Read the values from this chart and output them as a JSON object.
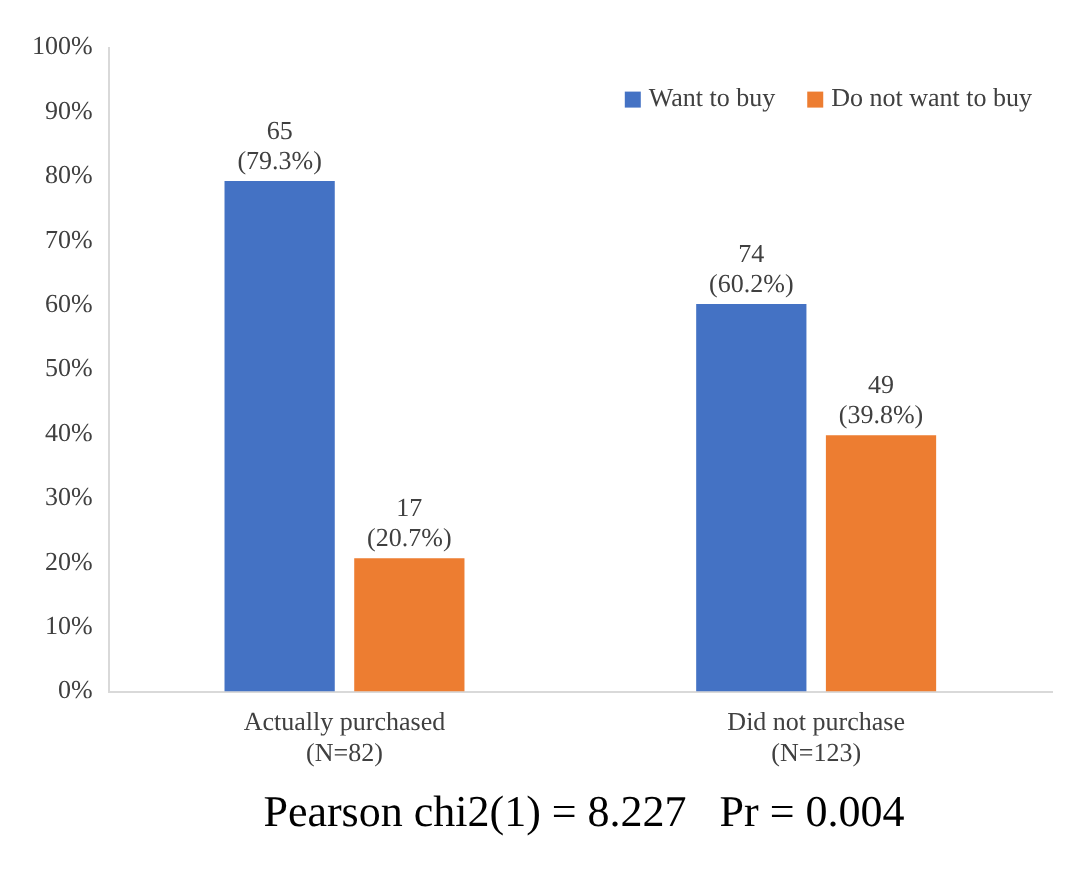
{
  "chart_data": {
    "type": "bar",
    "categories": [
      "Actually purchased\n(N=82)",
      "Did not purchase\n(N=123)"
    ],
    "series": [
      {
        "name": "Want to buy",
        "color": "#4472c4",
        "values": [
          79.3,
          60.2
        ],
        "value_labels": [
          "65\n(79.3%)",
          "74\n(60.2%)"
        ]
      },
      {
        "name": "Do not want to buy",
        "color": "#ed7d31",
        "values": [
          20.7,
          39.8
        ],
        "value_labels": [
          "17\n(20.7%)",
          "49\n(39.8%)"
        ]
      }
    ],
    "ylim": [
      0,
      100
    ],
    "yticks": [
      {
        "value": 0,
        "label": "0%"
      },
      {
        "value": 10,
        "label": "10%"
      },
      {
        "value": 20,
        "label": "20%"
      },
      {
        "value": 30,
        "label": "30%"
      },
      {
        "value": 40,
        "label": "40%"
      },
      {
        "value": 50,
        "label": "50%"
      },
      {
        "value": 60,
        "label": "60%"
      },
      {
        "value": 70,
        "label": "70%"
      },
      {
        "value": 80,
        "label": "80%"
      },
      {
        "value": 90,
        "label": "90%"
      },
      {
        "value": 100,
        "label": "100%"
      }
    ],
    "grid": false,
    "legend": "top right",
    "annotations": [
      "Pearson chi2(1) = 8.227   Pr = 0.004"
    ]
  }
}
